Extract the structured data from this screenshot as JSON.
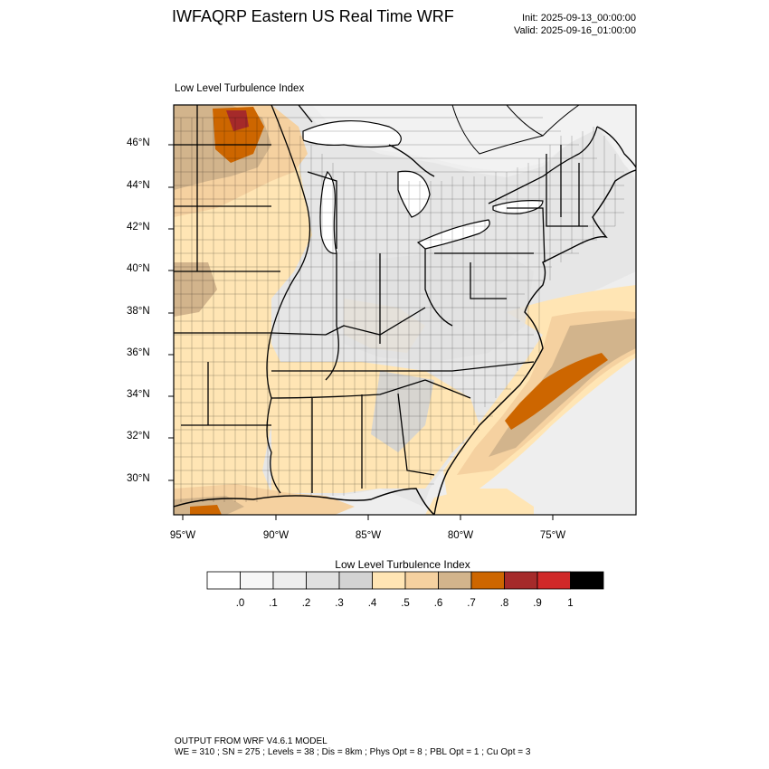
{
  "header": {
    "title": "IWFAQRP Eastern US Real Time WRF",
    "init": "Init: 2025-09-13_00:00:00",
    "valid": "Valid: 2025-09-16_01:00:00"
  },
  "panel": {
    "subtitle": "Low Level Turbulence Index",
    "lat_labels": [
      "46°N",
      "44°N",
      "42°N",
      "40°N",
      "38°N",
      "36°N",
      "34°N",
      "32°N",
      "30°N"
    ],
    "lon_labels": [
      "95°W",
      "90°W",
      "85°W",
      "80°W",
      "75°W"
    ]
  },
  "colorbar": {
    "title": "Low Level Turbulence Index",
    "colors": [
      "#ffffff",
      "#f7f7f7",
      "#eeeeee",
      "#e0e0e0",
      "#d3d3d3",
      "#ffe5b4",
      "#f5d1a0",
      "#d2b48c",
      "#cd6600",
      "#a52a2a",
      "#d02828",
      "#000000"
    ],
    "labels": [
      ".0",
      ".1",
      ".2",
      ".3",
      ".4",
      ".5",
      ".6",
      ".7",
      ".8",
      ".9",
      "1"
    ]
  },
  "footer": {
    "line1": "OUTPUT FROM WRF V4.6.1 MODEL",
    "line2": "WE = 310 ; SN = 275 ; Levels = 38 ; Dis = 8km ; Phys Opt = 8 ; PBL Opt = 1 ; Cu Opt = 3"
  }
}
